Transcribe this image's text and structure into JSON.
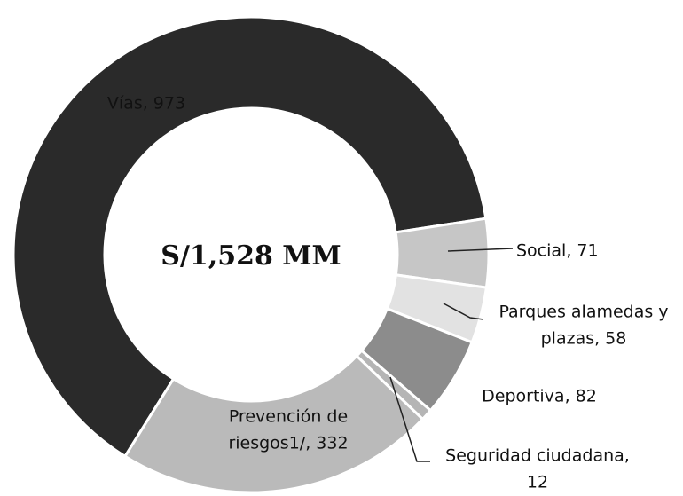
{
  "chart_data": {
    "type": "donut",
    "center_label": "S/1,528 MM",
    "values": [
      973,
      71,
      58,
      82,
      12,
      332
    ],
    "value_labels": [
      [
        "Vías, 973"
      ],
      [
        "Social, 71"
      ],
      [
        "Parques alamedas y",
        "plazas, 58"
      ],
      [
        "Deportiva, 82"
      ],
      [
        "Seguridad ciudadana,",
        "12"
      ],
      [
        "Prevención de",
        "riesgos1/, 332"
      ]
    ],
    "colors": [
      "#2a2a2a",
      "#c6c6c6",
      "#e2e2e2",
      "#8c8c8c",
      "#b5b5b5",
      "#bababa"
    ]
  }
}
